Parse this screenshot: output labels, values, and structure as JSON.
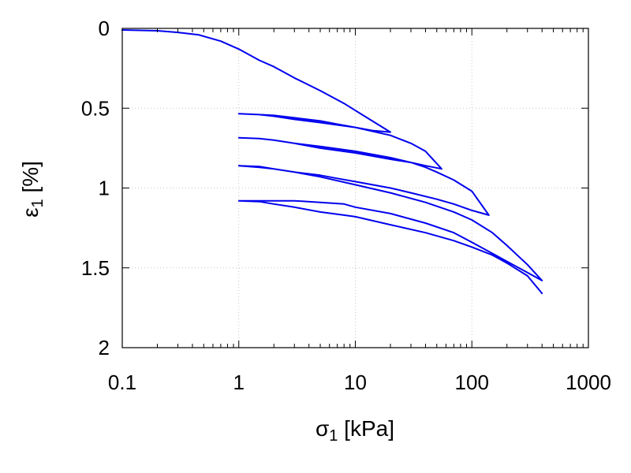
{
  "chart_data": {
    "type": "line",
    "title": "",
    "xlabel": {
      "symbol": "σ",
      "sub": "1",
      "unit": " [kPa]"
    },
    "ylabel": {
      "symbol": "ε",
      "sub": "1",
      "unit": " [%]"
    },
    "xscale": "log",
    "yscale": "linear",
    "yaxis_inverted": true,
    "xlim": [
      0.1,
      1000
    ],
    "ylim": [
      0,
      2
    ],
    "xticks": [
      0.1,
      1,
      10,
      100,
      1000
    ],
    "xtick_labels": [
      "0.1",
      "1",
      "10",
      "100",
      "1000"
    ],
    "yticks": [
      0,
      0.5,
      1,
      1.5,
      2
    ],
    "ytick_labels": [
      "0",
      "0.5",
      "1",
      "1.5",
      "2"
    ],
    "grid": true,
    "legend": "none",
    "color": "#0000ee",
    "series": [
      {
        "x": [
          0.1,
          0.2,
          0.3,
          0.45,
          0.7,
          1.0,
          1.5,
          2.0,
          3.0,
          5.0,
          8.0,
          12.0,
          20.0,
          14.0,
          10.0,
          7.0,
          5.0,
          3.0,
          2.0,
          1.5,
          1.0,
          1.5,
          2.0,
          3.0,
          5.0,
          10.0,
          20.0,
          30.0,
          40.0,
          55.0,
          40.0,
          30.0,
          20.0,
          10.0,
          5.0,
          3.0,
          2.0,
          1.5,
          1.0,
          1.5,
          2.0,
          3.0,
          5.0,
          10.0,
          20.0,
          30.0,
          40.0,
          50.0,
          70.0,
          100.0,
          140.0,
          100.0,
          70.0,
          50.0,
          30.0,
          20.0,
          10.0,
          7.0,
          5.0,
          3.0,
          2.0,
          1.5,
          1.0,
          1.5,
          2.0,
          3.0,
          5.0,
          10.0,
          20.0,
          40.0,
          70.0,
          100.0,
          150.0,
          200.0,
          300.0,
          400.0,
          300.0,
          200.0,
          150.0,
          100.0,
          70.0,
          40.0,
          20.0,
          10.0,
          8.0,
          5.0,
          3.0,
          2.0,
          1.0,
          1.5,
          2.0,
          3.0,
          5.0,
          8.0,
          10.0,
          20.0,
          40.0,
          70.0,
          100.0,
          150.0,
          200.0,
          300.0,
          400.0
        ],
        "y": [
          0.01,
          0.015,
          0.025,
          0.04,
          0.08,
          0.13,
          0.2,
          0.24,
          0.31,
          0.39,
          0.47,
          0.55,
          0.65,
          0.64,
          0.62,
          0.6,
          0.58,
          0.56,
          0.545,
          0.54,
          0.535,
          0.54,
          0.55,
          0.57,
          0.59,
          0.62,
          0.67,
          0.72,
          0.77,
          0.88,
          0.86,
          0.84,
          0.82,
          0.78,
          0.75,
          0.72,
          0.7,
          0.69,
          0.685,
          0.69,
          0.7,
          0.72,
          0.74,
          0.77,
          0.81,
          0.84,
          0.87,
          0.9,
          0.95,
          1.02,
          1.17,
          1.14,
          1.1,
          1.07,
          1.03,
          1.0,
          0.96,
          0.94,
          0.92,
          0.9,
          0.88,
          0.87,
          0.86,
          0.865,
          0.88,
          0.9,
          0.93,
          0.98,
          1.03,
          1.09,
          1.15,
          1.2,
          1.28,
          1.36,
          1.48,
          1.58,
          1.53,
          1.46,
          1.41,
          1.34,
          1.28,
          1.22,
          1.16,
          1.12,
          1.1,
          1.09,
          1.08,
          1.08,
          1.08,
          1.085,
          1.1,
          1.12,
          1.15,
          1.17,
          1.18,
          1.23,
          1.28,
          1.33,
          1.37,
          1.42,
          1.47,
          1.55,
          1.66
        ]
      }
    ]
  }
}
